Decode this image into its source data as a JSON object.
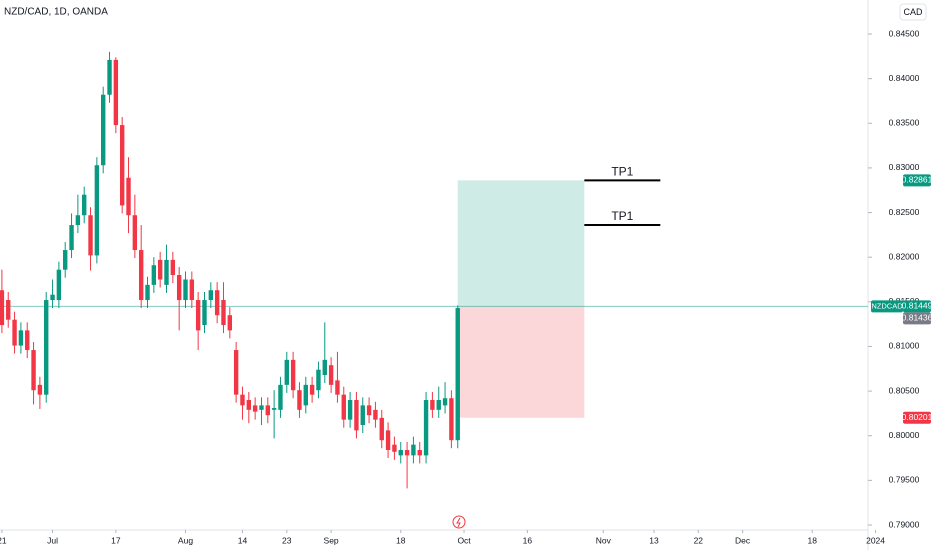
{
  "chart_data": {
    "type": "candlestick",
    "title": "NZD/CAD, 1D, OANDA",
    "currency": "CAD",
    "x": [
      0,
      1,
      2,
      3,
      4,
      5,
      6,
      7,
      8,
      9,
      10,
      11,
      12,
      13,
      14,
      15,
      16,
      17,
      18,
      19,
      20,
      21,
      22,
      23,
      24,
      25,
      26,
      27,
      28,
      29,
      30,
      31,
      32,
      33,
      34,
      35,
      36,
      37,
      38,
      39,
      40,
      41,
      42,
      43,
      44,
      45,
      46,
      47,
      48,
      49,
      50,
      51,
      52,
      53,
      54,
      55,
      56,
      57,
      58,
      59,
      60,
      61,
      62,
      63,
      64,
      65,
      66,
      67,
      68,
      69,
      70,
      71,
      72
    ],
    "open": [
      0.8163,
      0.8152,
      0.813,
      0.8101,
      0.8118,
      0.8096,
      0.8057,
      0.8046,
      0.8152,
      0.8152,
      0.8186,
      0.8208,
      0.8236,
      0.8247,
      0.8247,
      0.8202,
      0.8303,
      0.8382,
      0.8421,
      0.8348,
      0.8289,
      0.8247,
      0.8208,
      0.8152,
      0.8169,
      0.8197,
      0.8169,
      0.8197,
      0.818,
      0.8152,
      0.8175,
      0.8152,
      0.8124,
      0.8152,
      0.8163,
      0.8152,
      0.8135,
      0.8096,
      0.8046,
      0.804,
      0.8034,
      0.8029,
      0.8034,
      0.8029,
      0.8029,
      0.8057,
      0.8085,
      0.8051,
      0.8034,
      0.8057,
      0.8051,
      0.8068,
      0.8079,
      0.8062,
      0.8046,
      0.8018,
      0.804,
      0.8012,
      0.8034,
      0.8029,
      0.802,
      0.8006,
      0.799,
      0.7978,
      0.7984,
      0.7978,
      0.7984,
      0.7978,
      0.804,
      0.8029,
      0.8034,
      0.8042,
      0.7995
    ],
    "high": [
      0.8186,
      0.8161,
      0.8139,
      0.8127,
      0.8127,
      0.8105,
      0.8066,
      0.8161,
      0.8175,
      0.8195,
      0.8217,
      0.8249,
      0.827,
      0.8279,
      0.8256,
      0.8312,
      0.8391,
      0.843,
      0.8424,
      0.8357,
      0.8312,
      0.827,
      0.8236,
      0.8178,
      0.82,
      0.8206,
      0.8214,
      0.8206,
      0.8189,
      0.8184,
      0.8184,
      0.8161,
      0.8161,
      0.8172,
      0.8172,
      0.8172,
      0.8144,
      0.8105,
      0.8055,
      0.8049,
      0.8043,
      0.8043,
      0.8043,
      0.8051,
      0.8066,
      0.8094,
      0.8094,
      0.806,
      0.8066,
      0.8066,
      0.8083,
      0.8127,
      0.8088,
      0.8094,
      0.8055,
      0.8049,
      0.8049,
      0.8043,
      0.8043,
      0.8038,
      0.8029,
      0.8015,
      0.7999,
      0.7993,
      0.7993,
      0.7999,
      0.7993,
      0.8049,
      0.8049,
      0.8055,
      0.806,
      0.8051,
      0.8146
    ],
    "low": [
      0.8115,
      0.8121,
      0.8092,
      0.8092,
      0.8087,
      0.8035,
      0.803,
      0.8037,
      0.8143,
      0.8143,
      0.8177,
      0.8199,
      0.8227,
      0.8238,
      0.8185,
      0.8193,
      0.8294,
      0.8373,
      0.8339,
      0.8249,
      0.8227,
      0.8199,
      0.8143,
      0.8143,
      0.816,
      0.8166,
      0.816,
      0.8171,
      0.8118,
      0.8143,
      0.8143,
      0.8096,
      0.8115,
      0.8143,
      0.8126,
      0.8115,
      0.8109,
      0.8037,
      0.8018,
      0.8014,
      0.8018,
      0.8012,
      0.8014,
      0.7997,
      0.802,
      0.8048,
      0.8042,
      0.802,
      0.8025,
      0.8037,
      0.8042,
      0.8059,
      0.8048,
      0.8037,
      0.8009,
      0.8009,
      0.7997,
      0.8003,
      0.8014,
      0.8009,
      0.7986,
      0.7975,
      0.7973,
      0.7969,
      0.7941,
      0.7969,
      0.7969,
      0.7969,
      0.802,
      0.802,
      0.8025,
      0.7986,
      0.7986
    ],
    "close": [
      0.8124,
      0.813,
      0.8101,
      0.8118,
      0.8096,
      0.8051,
      0.8046,
      0.8152,
      0.8158,
      0.8186,
      0.8208,
      0.8236,
      0.8247,
      0.827,
      0.8202,
      0.8303,
      0.8382,
      0.8421,
      0.8348,
      0.8258,
      0.8247,
      0.8208,
      0.8152,
      0.8169,
      0.8191,
      0.8175,
      0.8197,
      0.818,
      0.8152,
      0.8175,
      0.8152,
      0.8118,
      0.8152,
      0.8163,
      0.8135,
      0.8124,
      0.8118,
      0.8046,
      0.8034,
      0.8029,
      0.8027,
      0.8034,
      0.8023,
      0.8031,
      0.8057,
      0.8085,
      0.8051,
      0.8029,
      0.8057,
      0.8046,
      0.8074,
      0.8085,
      0.8057,
      0.8046,
      0.8018,
      0.804,
      0.8006,
      0.8034,
      0.8023,
      0.8018,
      0.7995,
      0.7984,
      0.7982,
      0.7984,
      0.7978,
      0.799,
      0.7978,
      0.804,
      0.8029,
      0.804,
      0.8042,
      0.7995,
      0.8143
    ],
    "up_color": "#089981",
    "down_color": "#f23645",
    "xlim": [
      -0.3,
      138.7
    ],
    "ylim": [
      0.78944,
      0.84881
    ],
    "xticks": [
      {
        "value": 0,
        "label": "21"
      },
      {
        "value": 8,
        "label": "Jul"
      },
      {
        "value": 18,
        "label": "17"
      },
      {
        "value": 29,
        "label": "Aug"
      },
      {
        "value": 38,
        "label": "14"
      },
      {
        "value": 45,
        "label": "23"
      },
      {
        "value": 52,
        "label": "Sep"
      },
      {
        "value": 63,
        "label": "18"
      },
      {
        "value": 73,
        "label": "Oct"
      },
      {
        "value": 83,
        "label": "16"
      },
      {
        "value": 95,
        "label": "Nov"
      },
      {
        "value": 103,
        "label": "13"
      },
      {
        "value": 110,
        "label": "22"
      },
      {
        "value": 117,
        "label": "Dec"
      },
      {
        "value": 128,
        "label": "18"
      },
      {
        "value": 138,
        "label": "2024"
      }
    ],
    "yticks": [
      {
        "value": 0.845,
        "label": "0.84500"
      },
      {
        "value": 0.84,
        "label": "0.84000"
      },
      {
        "value": 0.835,
        "label": "0.83500"
      },
      {
        "value": 0.83,
        "label": "0.83000"
      },
      {
        "value": 0.825,
        "label": "0.82500"
      },
      {
        "value": 0.82,
        "label": "0.82000"
      },
      {
        "value": 0.815,
        "label": "0.81500"
      },
      {
        "value": 0.81,
        "label": "0.81000"
      },
      {
        "value": 0.805,
        "label": "0.80500"
      },
      {
        "value": 0.8,
        "label": "0.80000"
      },
      {
        "value": 0.795,
        "label": "0.79500"
      },
      {
        "value": 0.79,
        "label": "0.79000"
      }
    ],
    "last_price": {
      "symbol": "NZDCAD",
      "value": 0.81449,
      "color": "#089981"
    },
    "bid": {
      "value": 0.81436,
      "color": "#787b86"
    },
    "position": {
      "x_start": 72,
      "x_end": 92,
      "entry": 0.81449,
      "target": 0.82861,
      "stop": 0.80201,
      "target_color": "#089981",
      "stop_color": "#f23645"
    },
    "lines": [
      {
        "label": "TP1",
        "value": 0.82861,
        "x_start": 92,
        "x_end": 104
      },
      {
        "label": "TP1",
        "value": 0.8236,
        "x_start": 92,
        "x_end": 104
      }
    ]
  }
}
